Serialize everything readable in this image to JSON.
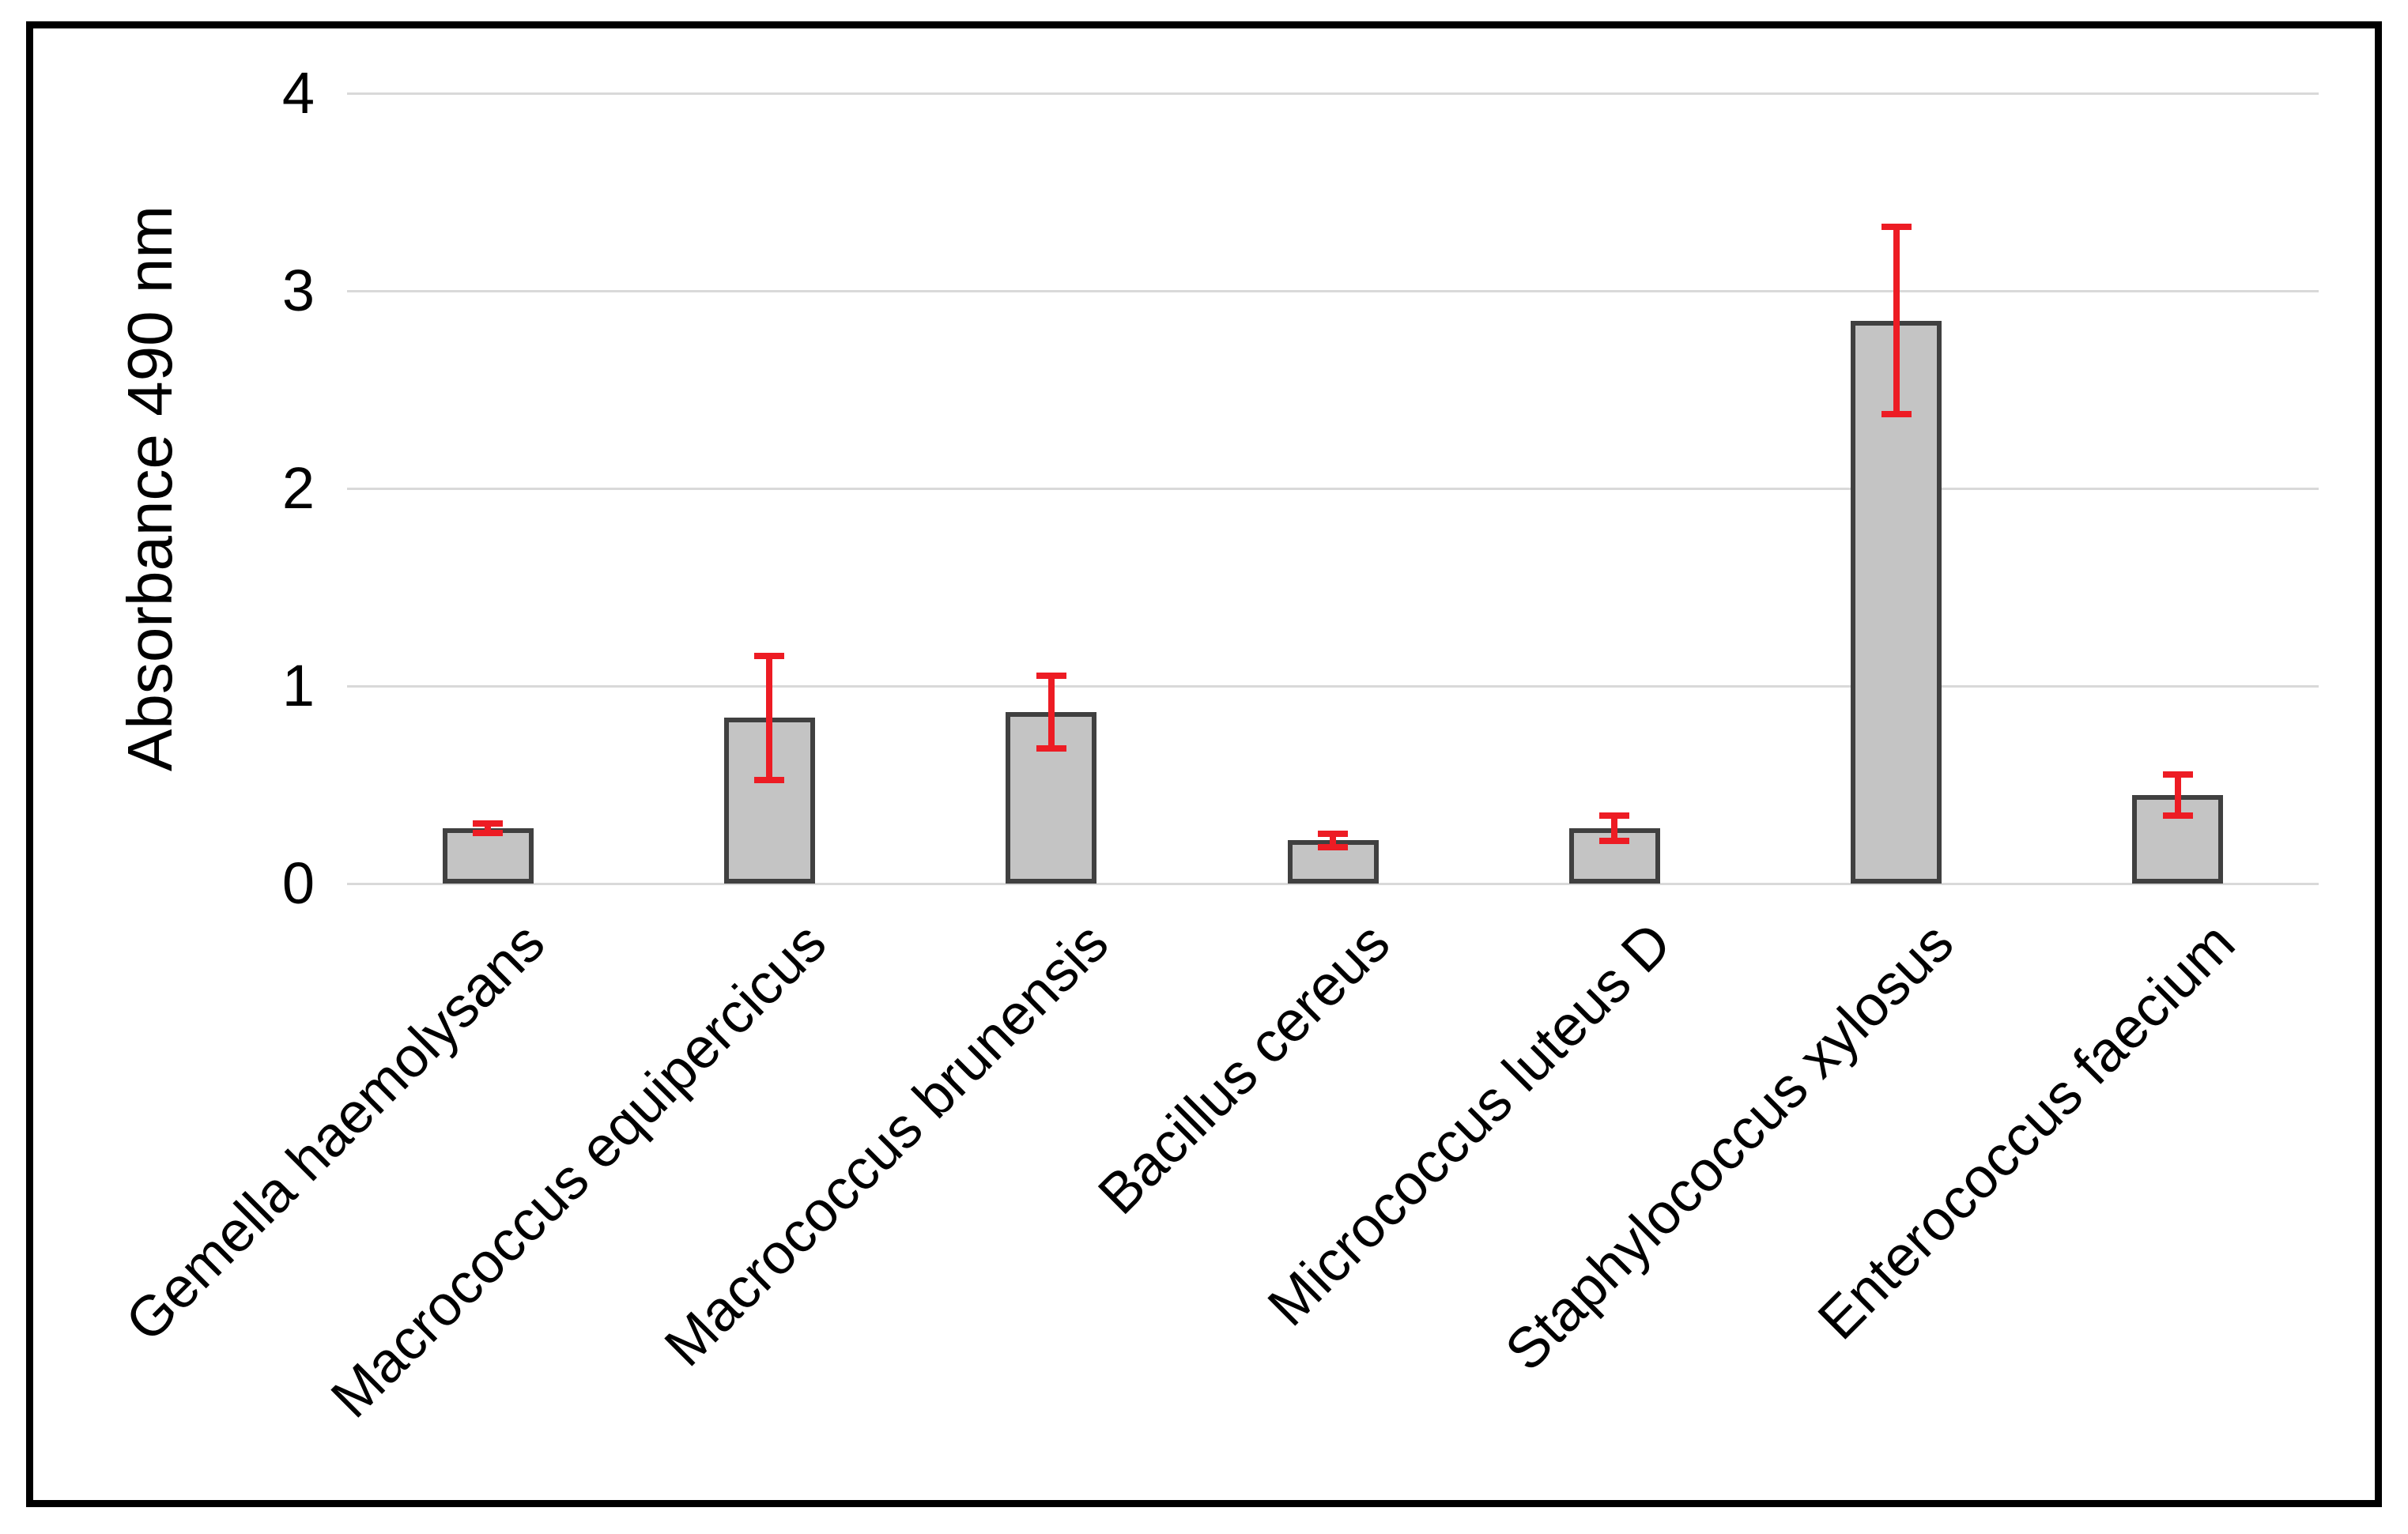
{
  "figure": {
    "background": "#FFFFFF",
    "border_color": "#000000"
  },
  "chart_data": {
    "type": "bar",
    "title": "",
    "xlabel": "",
    "ylabel": "Absorbance 490 nm",
    "ylim": [
      0,
      4
    ],
    "yticks": [
      0,
      1,
      2,
      3,
      4
    ],
    "grid": true,
    "legend": false,
    "categories": [
      "Gemella haemolysans",
      "Macrococcus equipercicus",
      "Macrococcus brunensis",
      "Bacillus cereus",
      "Micrococcus luteus D",
      "Staphylococcus xylosus",
      "Enterococcus faecium"
    ],
    "series": [
      {
        "name": "Absorbance 490 nm",
        "values": [
          0.28,
          0.84,
          0.87,
          0.22,
          0.28,
          2.85,
          0.45
        ],
        "errors": [
          0.04,
          0.33,
          0.2,
          0.05,
          0.08,
          0.49,
          0.12
        ]
      }
    ],
    "colors": {
      "bar_fill": "#C4C4C4",
      "bar_border": "#404040",
      "error_bar": "#ED1C24",
      "gridline": "#D9D9D9",
      "text": "#000000"
    }
  }
}
